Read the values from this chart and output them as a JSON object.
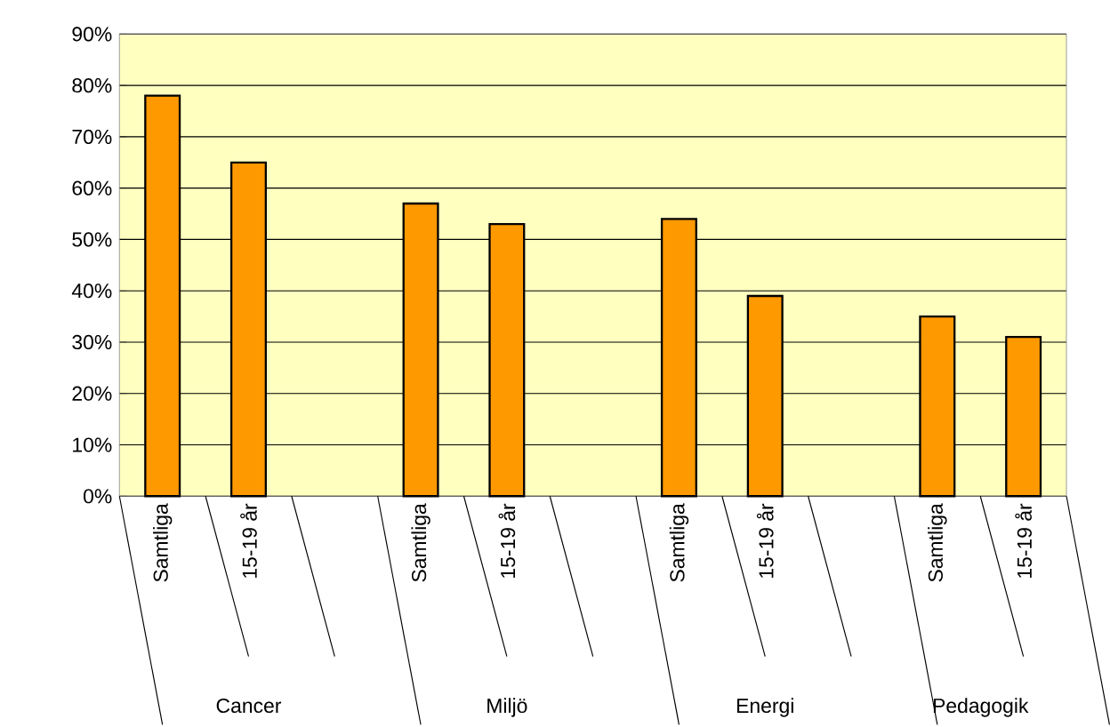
{
  "chart_data": {
    "type": "bar",
    "categories": [
      "Samtliga",
      "15-19 år",
      null,
      "Samtliga",
      "15-19 år",
      null,
      "Samtliga",
      "15-19 år",
      null,
      "Samtliga",
      "15-19 år"
    ],
    "values": [
      78,
      65,
      null,
      57,
      53,
      null,
      54,
      39,
      null,
      35,
      31
    ],
    "color": "#ff9900",
    "annotations": [
      "Cancer",
      "Miljö",
      "Energi",
      "Pedagogik"
    ],
    "ylim": [
      0,
      90
    ],
    "yticks": [
      {
        "value": 0,
        "label": "0%"
      },
      {
        "value": 10,
        "label": "10%"
      },
      {
        "value": 20,
        "label": "20%"
      },
      {
        "value": 30,
        "label": "30%"
      },
      {
        "value": 40,
        "label": "40%"
      },
      {
        "value": 50,
        "label": "50%"
      },
      {
        "value": 60,
        "label": "60%"
      },
      {
        "value": 70,
        "label": "70%"
      },
      {
        "value": 80,
        "label": "80%"
      },
      {
        "value": 90,
        "label": "90%"
      }
    ],
    "grid": "y"
  }
}
